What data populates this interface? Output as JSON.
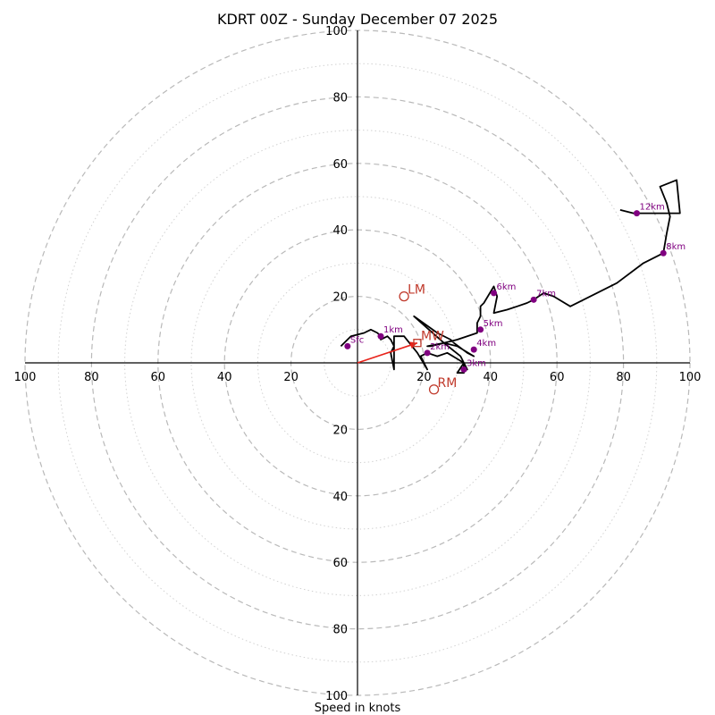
{
  "chart_data": {
    "type": "hodograph",
    "title": "KDRT 00Z - Sunday December 07 2025",
    "xlabel": "Speed in knots",
    "speed_max": 100,
    "ring_major": [
      20,
      40,
      60,
      80,
      100
    ],
    "ring_minor": [
      10,
      30,
      50,
      70,
      90
    ],
    "axis_tick_labels": [
      "100",
      "80",
      "60",
      "40",
      "20"
    ],
    "y_tick_labels": [
      "100",
      "80",
      "60",
      "40",
      "20"
    ],
    "trace": [
      [
        -5,
        5
      ],
      [
        -3,
        7
      ],
      [
        -2,
        8
      ],
      [
        2,
        9
      ],
      [
        4,
        10
      ],
      [
        6,
        9
      ],
      [
        7,
        8
      ],
      [
        7,
        7
      ],
      [
        9,
        8
      ],
      [
        10,
        7
      ],
      [
        11,
        5
      ],
      [
        10,
        3
      ],
      [
        11,
        -2
      ],
      [
        11,
        8
      ],
      [
        14,
        8
      ],
      [
        18,
        3
      ],
      [
        21,
        -2
      ],
      [
        19,
        2
      ],
      [
        21,
        3
      ],
      [
        24,
        2
      ],
      [
        27,
        3
      ],
      [
        32,
        0
      ],
      [
        30,
        -3
      ],
      [
        32,
        -3
      ],
      [
        32,
        0
      ],
      [
        33,
        -2
      ],
      [
        31,
        2
      ],
      [
        26,
        6
      ],
      [
        17,
        14
      ],
      [
        24,
        9
      ],
      [
        28,
        7
      ],
      [
        29,
        6
      ],
      [
        33,
        3
      ],
      [
        35,
        2
      ],
      [
        30,
        5
      ],
      [
        26,
        6
      ],
      [
        21,
        5
      ],
      [
        22,
        5
      ],
      [
        30,
        7
      ],
      [
        36,
        9
      ],
      [
        36,
        12
      ],
      [
        37,
        14
      ],
      [
        37,
        17
      ],
      [
        38,
        18
      ],
      [
        41,
        23
      ],
      [
        42,
        20
      ],
      [
        41,
        15
      ],
      [
        45,
        16
      ],
      [
        48,
        17
      ],
      [
        51,
        18
      ],
      [
        53,
        19
      ],
      [
        56,
        21
      ],
      [
        59,
        20
      ],
      [
        64,
        17
      ],
      [
        72,
        21
      ],
      [
        78,
        24
      ],
      [
        86,
        30
      ],
      [
        92,
        33
      ],
      [
        93,
        39
      ],
      [
        94,
        44
      ],
      [
        93,
        48
      ],
      [
        91,
        53
      ],
      [
        96,
        55
      ],
      [
        97,
        45
      ],
      [
        89,
        45
      ],
      [
        83,
        45
      ],
      [
        79,
        46
      ]
    ],
    "height_markers": [
      {
        "label": "Sfc",
        "u": -3,
        "v": 5
      },
      {
        "label": "1km",
        "u": 7,
        "v": 8
      },
      {
        "label": "2km",
        "u": 21,
        "v": 3
      },
      {
        "label": "3km",
        "u": 32,
        "v": -2
      },
      {
        "label": "4km",
        "u": 35,
        "v": 4
      },
      {
        "label": "5km",
        "u": 37,
        "v": 10
      },
      {
        "label": "6km",
        "u": 41,
        "v": 21
      },
      {
        "label": "7km",
        "u": 53,
        "v": 19
      },
      {
        "label": "8km",
        "u": 92,
        "v": 33
      },
      {
        "label": "12km",
        "u": 84,
        "v": 45
      }
    ],
    "storm_motions": [
      {
        "label": "LM",
        "u": 14,
        "v": 20
      },
      {
        "label": "RM",
        "u": 23,
        "v": -8
      },
      {
        "label": "MW",
        "u": 18,
        "v": 6
      }
    ],
    "mean_wind_vector": {
      "u": 18,
      "v": 6
    },
    "colors": {
      "trace": "#000000",
      "markers": "#800080",
      "storm_motion": "#c0392b",
      "vector": "#e8241c"
    }
  }
}
